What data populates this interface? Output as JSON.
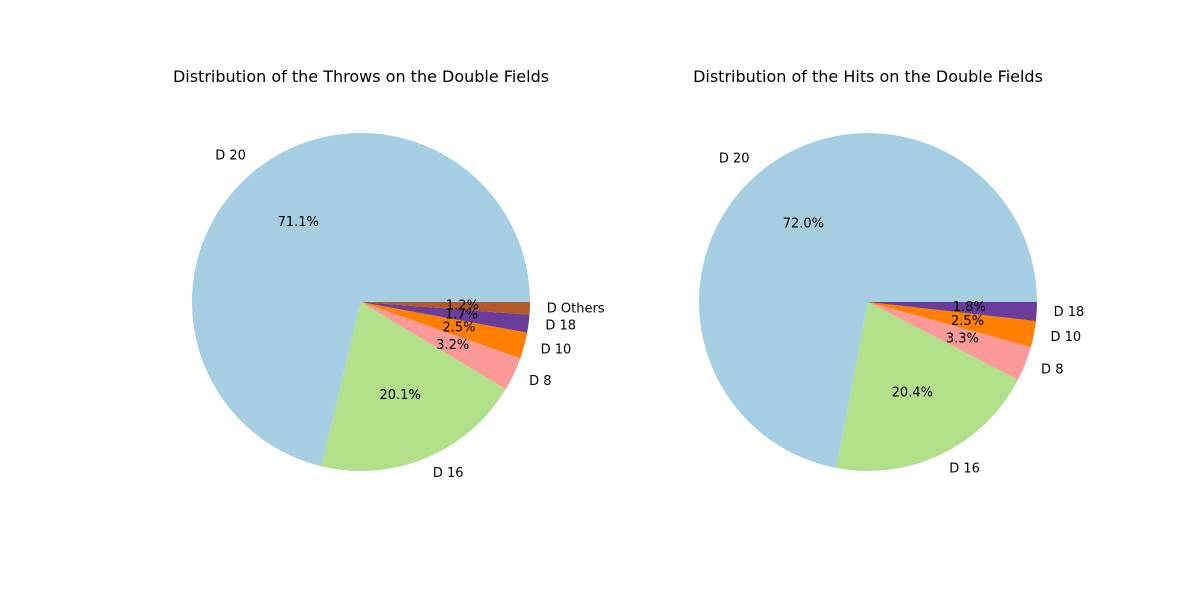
{
  "chart_data": [
    {
      "type": "pie",
      "title": "Distribution of the Throws on the Double Fields",
      "labels": [
        "D 20",
        "D 16",
        "D 8",
        "D 10",
        "D 18",
        "D Others"
      ],
      "values": [
        71.1,
        20.1,
        3.2,
        2.5,
        1.7,
        1.2
      ],
      "percent_labels": [
        "71.1%",
        "20.1%",
        "3.2%",
        "2.5%",
        "1.7%",
        "1.2%"
      ],
      "colors": [
        "#a6cee3",
        "#b2df8a",
        "#fb9a99",
        "#ff7f00",
        "#6a3d9a",
        "#b15928"
      ],
      "start_angle": 0,
      "direction": "counterclockwise"
    },
    {
      "type": "pie",
      "title": "Distribution of the Hits on the Double Fields",
      "labels": [
        "D 20",
        "D 16",
        "D 8",
        "D 10",
        "D 18"
      ],
      "values": [
        72.0,
        20.4,
        3.3,
        2.5,
        1.8
      ],
      "percent_labels": [
        "72.0%",
        "20.4%",
        "3.3%",
        "2.5%",
        "1.8%"
      ],
      "colors": [
        "#a6cee3",
        "#b2df8a",
        "#fb9a99",
        "#ff7f00",
        "#6a3d9a"
      ],
      "start_angle": 0,
      "direction": "counterclockwise"
    }
  ]
}
